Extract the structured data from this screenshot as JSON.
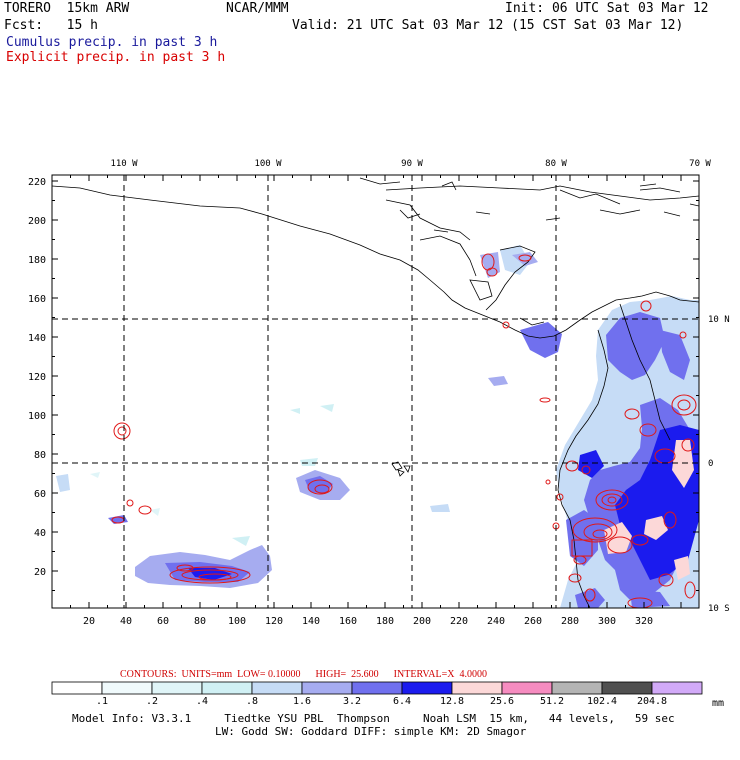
{
  "header": {
    "model": "TORERO  15km ARW",
    "institution": "NCAR/MMM",
    "init": "Init: 06 UTC Sat 03 Mar 12",
    "fcst": "Fcst:   15 h",
    "valid": "Valid: 21 UTC Sat 03 Mar 12 (15 CST Sat 03 Mar 12)",
    "cumulus_label": "Cumulus precip. in past 3 h",
    "explicit_label": "Explicit precip. in past 3 h",
    "cumulus_color": "#00007f",
    "explicit_color": "#e00000"
  },
  "map": {
    "lon_labels": [
      "110 W",
      "100 W",
      "90 W",
      "80 W",
      "70 W"
    ],
    "lat_labels": [
      "10 N",
      "0",
      "10 S"
    ],
    "y_ticks": [
      "220",
      "200",
      "180",
      "160",
      "140",
      "120",
      "100",
      "80",
      "60",
      "40",
      "20"
    ],
    "x_ticks": [
      "20",
      "40",
      "60",
      "80",
      "100",
      "120",
      "140",
      "160",
      "180",
      "200",
      "220",
      "240",
      "260",
      "280",
      "300",
      "320"
    ]
  },
  "contour_info": {
    "contours": "CONTOURS:  UNITS=mm  LOW= 0.10000      HIGH=  25.600      INTERVAL=X  4.0000"
  },
  "colorbar": {
    "labels": [
      ".1",
      ".2",
      ".4",
      ".8",
      "1.6",
      "3.2",
      "6.4",
      "12.8",
      "25.6",
      "51.2",
      "102.4",
      "204.8"
    ],
    "units": "mm",
    "colors": [
      "#ffffff",
      "#f0fafc",
      "#e0f5f8",
      "#d0f0f4",
      "#c6dcf6",
      "#a6acf0",
      "#7070ee",
      "#1b1bee",
      "#fcd8d8",
      "#f68cc0",
      "#b4b4b4",
      "#505050",
      "#d2aaf8"
    ]
  },
  "footer": {
    "line1": "Model Info: V3.3.1     Tiedtke YSU PBL  Thompson     Noah LSM  15 km,   44 levels,   59 sec",
    "line2": "LW: Godd SW: Goddard DIFF: simple KM: 2D Smagor"
  }
}
